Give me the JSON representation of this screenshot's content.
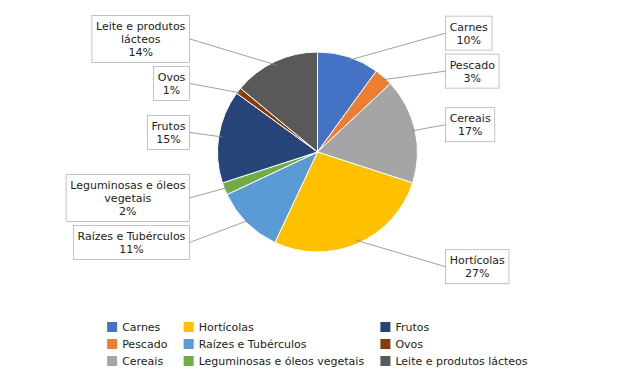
{
  "chart_data": {
    "type": "pie",
    "categories": [
      "Carnes",
      "Pescado",
      "Cereais",
      "Hortícolas",
      "Raízes e Tubérculos",
      "Leguminosas e óleos vegetais",
      "Frutos",
      "Ovos",
      "Leite e produtos lácteos"
    ],
    "values": [
      10,
      3,
      17,
      27,
      11,
      2,
      15,
      1,
      14
    ],
    "value_labels": [
      "Carnes\n10%",
      "Pescado\n3%",
      "Cereais\n17%",
      "Hortícolas\n27%",
      "Raízes e Tubérculos\n11%",
      "Leguminosas e óleos\nvegetais\n2%",
      "Frutos\n15%",
      "Ovos\n1%",
      "Leite e produtos\nlácteos\n14%"
    ],
    "colors": [
      "#4472C4",
      "#ED7D31",
      "#A5A5A5",
      "#FFC000",
      "#5B9BD5",
      "#70AD47",
      "#264478",
      "#843C0C",
      "#595959"
    ],
    "data_labels": true,
    "legend": "bottom"
  }
}
